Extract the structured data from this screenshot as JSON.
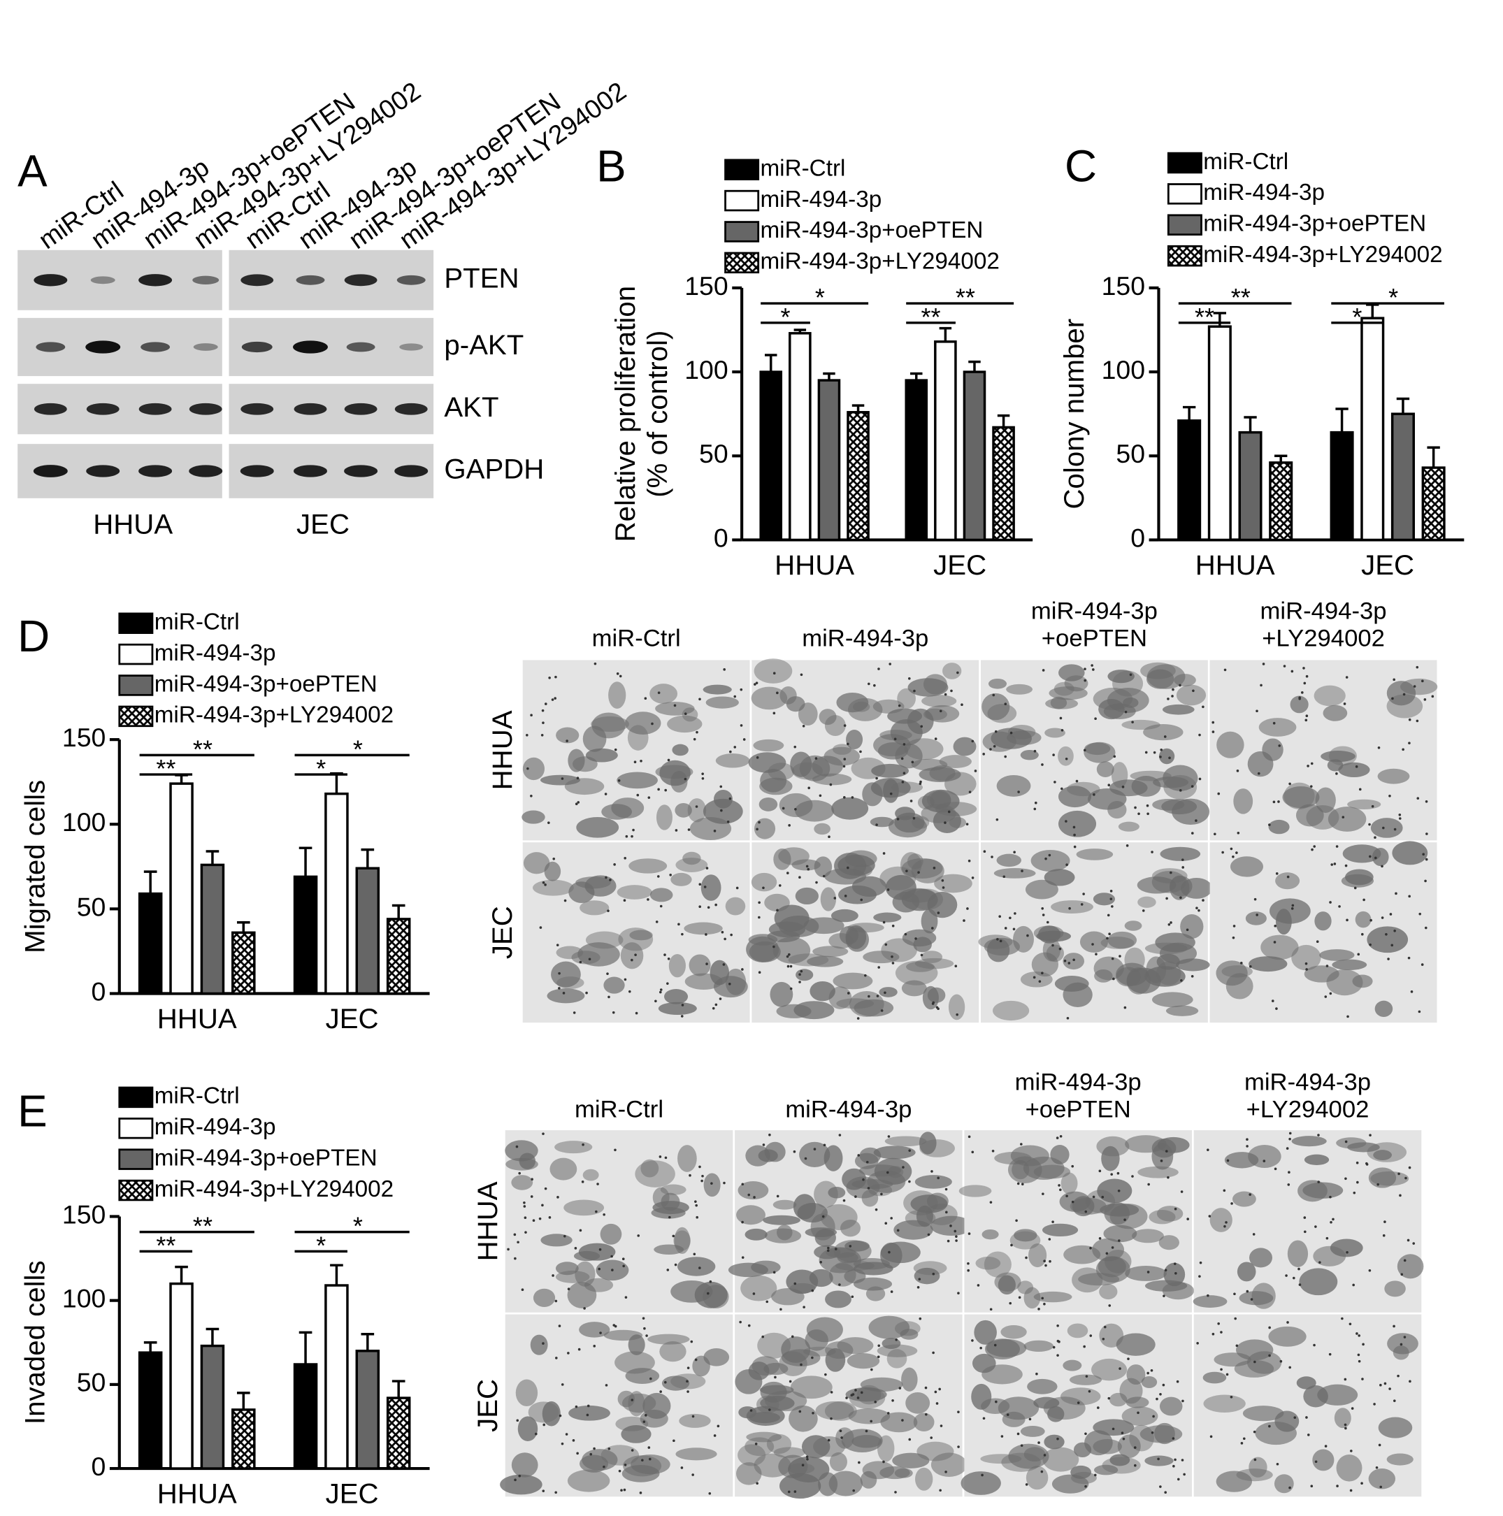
{
  "blot": {
    "panel": "A",
    "lanes": [
      "miR-Ctrl",
      "miR-494-3p",
      "miR-494-3p+oePTEN",
      "miR-494-3p+LY294002",
      "miR-Ctrl",
      "miR-494-3p",
      "miR-494-3p+oePTEN",
      "miR-494-3p+LY294002"
    ],
    "proteins": [
      "PTEN",
      "p-AKT",
      "AKT",
      "GAPDH"
    ],
    "cell_lines": [
      "HHUA",
      "JEC"
    ]
  },
  "chart_data": [
    {
      "type": "bar",
      "panel": "B",
      "ylabel": [
        "Relative proliferation",
        "(% of control)"
      ],
      "categories": [
        "HHUA",
        "JEC"
      ],
      "ylim": [
        0,
        150
      ],
      "yticks": [
        0,
        50,
        100,
        150
      ],
      "series": [
        {
          "name": "miR-Ctrl",
          "color": "#000000",
          "values": [
            100,
            95
          ],
          "errors": [
            10,
            4
          ]
        },
        {
          "name": "miR-494-3p",
          "color": "#ffffff",
          "values": [
            123,
            118
          ],
          "errors": [
            2,
            8
          ]
        },
        {
          "name": "miR-494-3p+oePTEN",
          "color": "#666666",
          "values": [
            95,
            100
          ],
          "errors": [
            4,
            6
          ]
        },
        {
          "name": "miR-494-3p+LY294002",
          "color": "#000000",
          "pattern": "crosshatch",
          "values": [
            76,
            67
          ],
          "errors": [
            4,
            7
          ]
        }
      ],
      "annotations": [
        [
          "*",
          "*"
        ],
        [
          "**",
          "**"
        ]
      ]
    },
    {
      "type": "bar",
      "panel": "C",
      "ylabel": [
        "Colony number"
      ],
      "categories": [
        "HHUA",
        "JEC"
      ],
      "ylim": [
        0,
        150
      ],
      "yticks": [
        0,
        50,
        100,
        150
      ],
      "series": [
        {
          "name": "miR-Ctrl",
          "color": "#000000",
          "values": [
            71,
            64
          ],
          "errors": [
            8,
            14
          ]
        },
        {
          "name": "miR-494-3p",
          "color": "#ffffff",
          "values": [
            127,
            132
          ],
          "errors": [
            8,
            8
          ]
        },
        {
          "name": "miR-494-3p+oePTEN",
          "color": "#666666",
          "values": [
            64,
            75
          ],
          "errors": [
            9,
            9
          ]
        },
        {
          "name": "miR-494-3p+LY294002",
          "color": "#000000",
          "pattern": "crosshatch",
          "values": [
            46,
            43
          ],
          "errors": [
            4,
            12
          ]
        }
      ],
      "annotations": [
        [
          "**",
          "**"
        ],
        [
          "*",
          "*"
        ]
      ]
    },
    {
      "type": "bar",
      "panel": "D",
      "ylabel": [
        "Migrated cells"
      ],
      "categories": [
        "HHUA",
        "JEC"
      ],
      "ylim": [
        0,
        150
      ],
      "yticks": [
        0,
        50,
        100,
        150
      ],
      "series": [
        {
          "name": "miR-Ctrl",
          "color": "#000000",
          "values": [
            59,
            69
          ],
          "errors": [
            13,
            17
          ]
        },
        {
          "name": "miR-494-3p",
          "color": "#ffffff",
          "values": [
            124,
            118
          ],
          "errors": [
            5,
            12
          ]
        },
        {
          "name": "miR-494-3p+oePTEN",
          "color": "#666666",
          "values": [
            76,
            74
          ],
          "errors": [
            8,
            11
          ]
        },
        {
          "name": "miR-494-3p+LY294002",
          "color": "#000000",
          "pattern": "crosshatch",
          "values": [
            36,
            44
          ],
          "errors": [
            6,
            8
          ]
        }
      ],
      "annotations": [
        [
          "**",
          "**"
        ],
        [
          "*",
          "*"
        ]
      ]
    },
    {
      "type": "bar",
      "panel": "E",
      "ylabel": [
        "Invaded cells"
      ],
      "categories": [
        "HHUA",
        "JEC"
      ],
      "ylim": [
        0,
        150
      ],
      "yticks": [
        0,
        50,
        100,
        150
      ],
      "series": [
        {
          "name": "miR-Ctrl",
          "color": "#000000",
          "values": [
            69,
            62
          ],
          "errors": [
            6,
            19
          ]
        },
        {
          "name": "miR-494-3p",
          "color": "#ffffff",
          "values": [
            110,
            109
          ],
          "errors": [
            10,
            12
          ]
        },
        {
          "name": "miR-494-3p+oePTEN",
          "color": "#666666",
          "values": [
            73,
            70
          ],
          "errors": [
            10,
            10
          ]
        },
        {
          "name": "miR-494-3p+LY294002",
          "color": "#000000",
          "pattern": "crosshatch",
          "values": [
            35,
            42
          ],
          "errors": [
            10,
            10
          ]
        }
      ],
      "annotations": [
        [
          "**",
          "**"
        ],
        [
          "*",
          "*"
        ]
      ]
    }
  ],
  "micrographs": [
    {
      "columns": [
        [
          "miR-Ctrl"
        ],
        [
          "miR-494-3p"
        ],
        [
          "miR-494-3p",
          "+oePTEN"
        ],
        [
          "miR-494-3p",
          "+LY294002"
        ]
      ],
      "rows": [
        "HHUA",
        "JEC"
      ]
    },
    {
      "columns": [
        [
          "miR-Ctrl"
        ],
        [
          "miR-494-3p"
        ],
        [
          "miR-494-3p",
          "+oePTEN"
        ],
        [
          "miR-494-3p",
          "+LY294002"
        ]
      ],
      "rows": [
        "HHUA",
        "JEC"
      ]
    }
  ]
}
